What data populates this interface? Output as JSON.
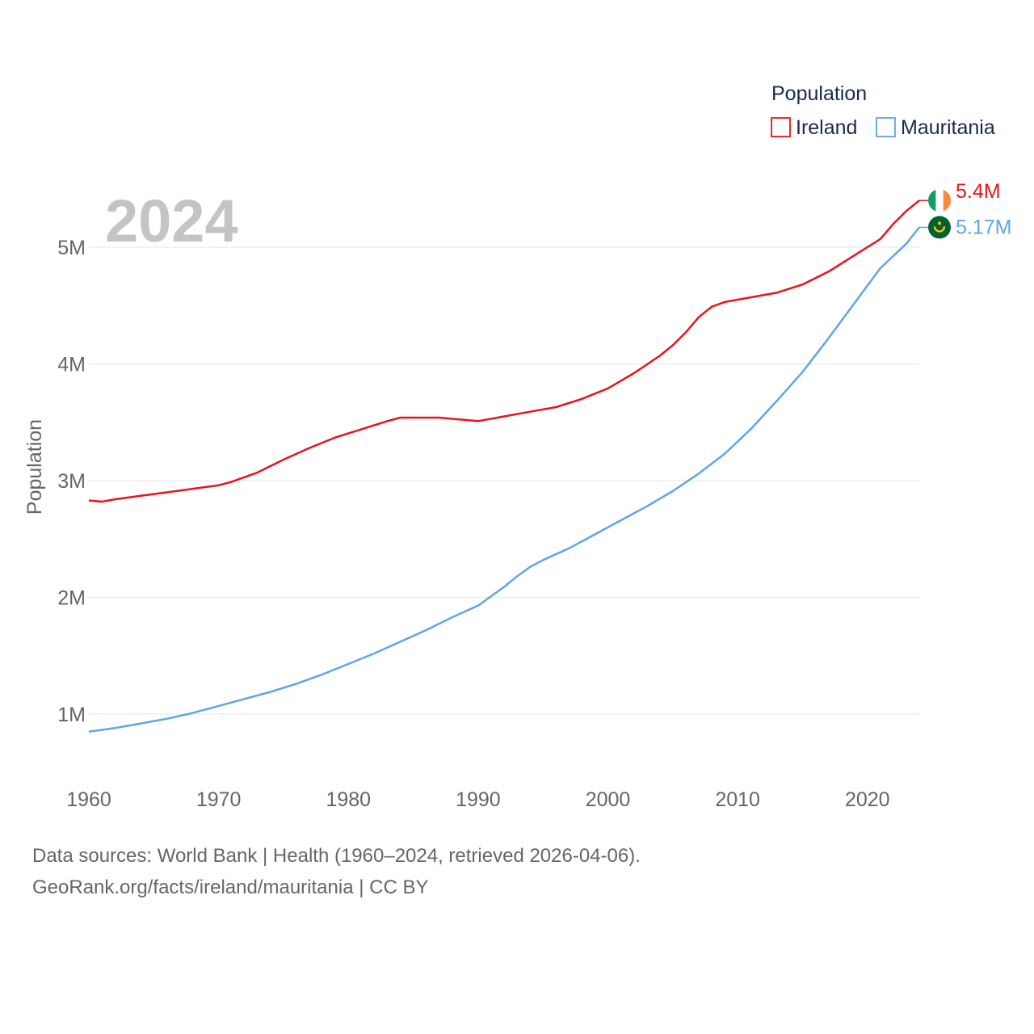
{
  "chart_data": {
    "type": "line",
    "year_label": "2024",
    "ylabel": "Population",
    "ylim": [
      0.6,
      5.5
    ],
    "xlim": [
      1960,
      2024
    ],
    "yticks": [
      {
        "value": 1,
        "label": "1M"
      },
      {
        "value": 2,
        "label": "2M"
      },
      {
        "value": 3,
        "label": "3M"
      },
      {
        "value": 4,
        "label": "4M"
      },
      {
        "value": 5,
        "label": "5M"
      }
    ],
    "xticks": [
      {
        "value": 1960,
        "label": "1960"
      },
      {
        "value": 1970,
        "label": "1970"
      },
      {
        "value": 1980,
        "label": "1980"
      },
      {
        "value": 1990,
        "label": "1990"
      },
      {
        "value": 2000,
        "label": "2000"
      },
      {
        "value": 2010,
        "label": "2010"
      },
      {
        "value": 2020,
        "label": "2020"
      }
    ],
    "legend": {
      "title": "Population",
      "position": "top-right"
    },
    "series": [
      {
        "name": "Ireland",
        "color": "#e8141a",
        "end_label": "5.4M",
        "flag_colors": [
          "#169b62",
          "#ffffff",
          "#ff883e"
        ],
        "points": [
          [
            1960,
            2.83
          ],
          [
            1961,
            2.82
          ],
          [
            1962,
            2.84
          ],
          [
            1964,
            2.87
          ],
          [
            1966,
            2.9
          ],
          [
            1968,
            2.93
          ],
          [
            1970,
            2.96
          ],
          [
            1971,
            2.99
          ],
          [
            1973,
            3.07
          ],
          [
            1975,
            3.18
          ],
          [
            1977,
            3.28
          ],
          [
            1979,
            3.37
          ],
          [
            1981,
            3.44
          ],
          [
            1983,
            3.51
          ],
          [
            1984,
            3.54
          ],
          [
            1986,
            3.54
          ],
          [
            1987,
            3.54
          ],
          [
            1989,
            3.52
          ],
          [
            1990,
            3.51
          ],
          [
            1992,
            3.55
          ],
          [
            1994,
            3.59
          ],
          [
            1996,
            3.63
          ],
          [
            1998,
            3.7
          ],
          [
            2000,
            3.79
          ],
          [
            2002,
            3.92
          ],
          [
            2004,
            4.07
          ],
          [
            2005,
            4.16
          ],
          [
            2006,
            4.27
          ],
          [
            2007,
            4.4
          ],
          [
            2008,
            4.49
          ],
          [
            2009,
            4.53
          ],
          [
            2010,
            4.55
          ],
          [
            2011,
            4.57
          ],
          [
            2013,
            4.61
          ],
          [
            2015,
            4.68
          ],
          [
            2017,
            4.79
          ],
          [
            2019,
            4.93
          ],
          [
            2021,
            5.07
          ],
          [
            2022,
            5.2
          ],
          [
            2023,
            5.31
          ],
          [
            2024,
            5.4
          ]
        ]
      },
      {
        "name": "Mauritania",
        "color": "#5ea6e6",
        "end_label": "5.17M",
        "flag_colors": [
          "#006233",
          "#d01c1f",
          "#ffc400"
        ],
        "points": [
          [
            1960,
            0.85
          ],
          [
            1962,
            0.88
          ],
          [
            1964,
            0.92
          ],
          [
            1966,
            0.96
          ],
          [
            1968,
            1.01
          ],
          [
            1970,
            1.07
          ],
          [
            1972,
            1.13
          ],
          [
            1974,
            1.19
          ],
          [
            1976,
            1.26
          ],
          [
            1978,
            1.34
          ],
          [
            1980,
            1.43
          ],
          [
            1982,
            1.52
          ],
          [
            1984,
            1.62
          ],
          [
            1986,
            1.72
          ],
          [
            1988,
            1.83
          ],
          [
            1990,
            1.93
          ],
          [
            1991,
            2.01
          ],
          [
            1992,
            2.09
          ],
          [
            1993,
            2.18
          ],
          [
            1994,
            2.26
          ],
          [
            1995,
            2.32
          ],
          [
            1997,
            2.42
          ],
          [
            1999,
            2.54
          ],
          [
            2001,
            2.66
          ],
          [
            2003,
            2.78
          ],
          [
            2005,
            2.91
          ],
          [
            2007,
            3.06
          ],
          [
            2009,
            3.23
          ],
          [
            2011,
            3.44
          ],
          [
            2013,
            3.68
          ],
          [
            2015,
            3.93
          ],
          [
            2017,
            4.22
          ],
          [
            2019,
            4.52
          ],
          [
            2021,
            4.82
          ],
          [
            2023,
            5.03
          ],
          [
            2024,
            5.17
          ]
        ]
      }
    ]
  },
  "footer": {
    "source_line": "Data sources: World Bank | Health (1960–2024, retrieved 2026-04-06).",
    "url_line": "GeoRank.org/facts/ireland/mauritania | CC BY"
  }
}
